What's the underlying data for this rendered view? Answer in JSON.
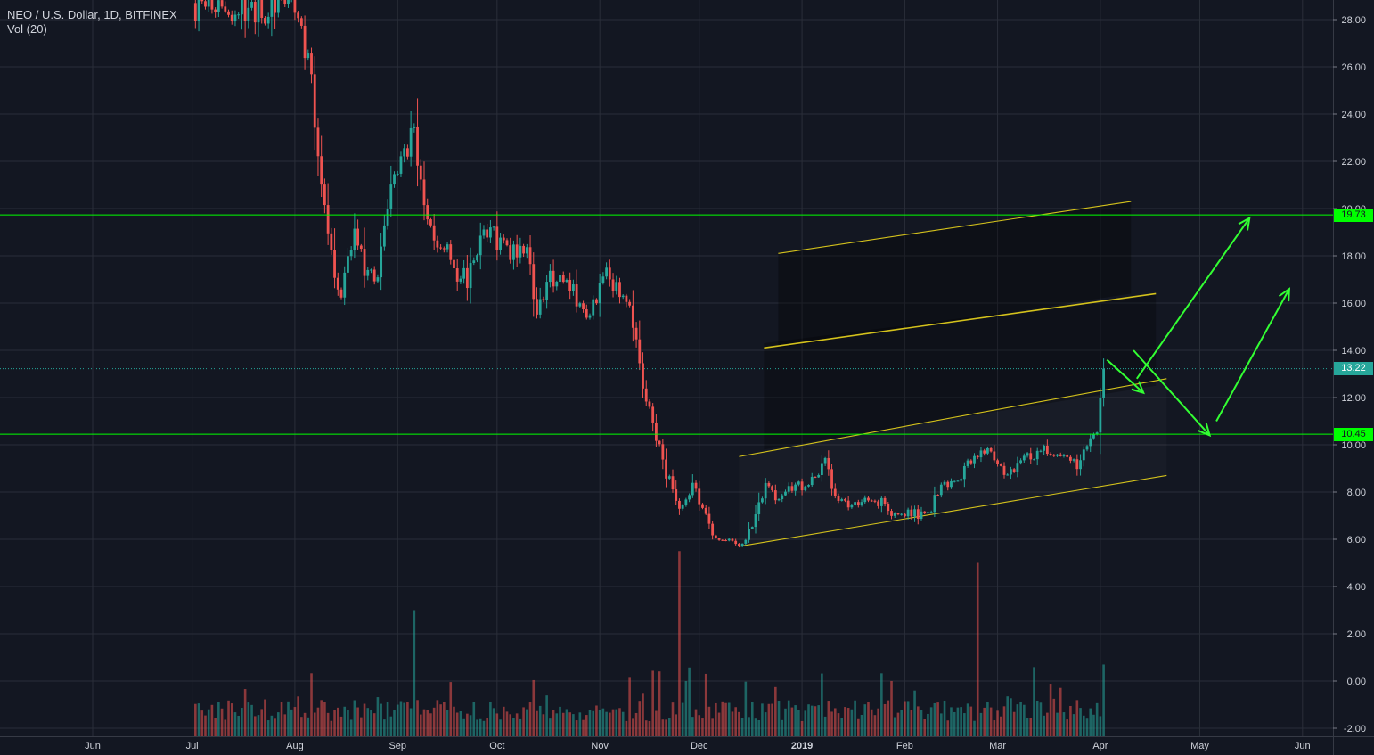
{
  "legend": {
    "title": "NEO / U.S. Dollar, 1D, BITFINEX",
    "indicator": "Vol (20)"
  },
  "colors": {
    "background": "#131722",
    "grid": "#2a2e39",
    "up": "#26a69a",
    "down": "#ef5350",
    "level_line": "#00ff00",
    "arrow": "#33ff33",
    "channel": "#d4c21c",
    "axis_text": "#d1d4dc",
    "last_price": "#26a69a"
  },
  "chart_data": {
    "type": "candlestick",
    "symbol": "NEO / U.S. Dollar",
    "interval": "1D",
    "exchange": "BITFINEX",
    "indicator": "Vol (20)",
    "y_axis": {
      "ticks": [
        "-2.00",
        "0.00",
        "2.00",
        "4.00",
        "6.00",
        "8.00",
        "10.00",
        "12.00",
        "14.00",
        "16.00",
        "18.00",
        "20.00",
        "22.00",
        "24.00",
        "26.00",
        "28.00"
      ],
      "range": [
        -2.2,
        28.8
      ]
    },
    "x_axis": {
      "ticks": [
        {
          "label": "Jun",
          "date": "2018-06-01",
          "bold": false
        },
        {
          "label": "Jul",
          "date": "2018-07-01",
          "bold": false
        },
        {
          "label": "Aug",
          "date": "2018-08-01",
          "bold": false
        },
        {
          "label": "Sep",
          "date": "2018-09-01",
          "bold": false
        },
        {
          "label": "Oct",
          "date": "2018-10-01",
          "bold": false
        },
        {
          "label": "Nov",
          "date": "2018-11-01",
          "bold": false
        },
        {
          "label": "Dec",
          "date": "2018-12-01",
          "bold": false
        },
        {
          "label": "2019",
          "date": "2019-01-01",
          "bold": true
        },
        {
          "label": "Feb",
          "date": "2019-02-01",
          "bold": false
        },
        {
          "label": "Mar",
          "date": "2019-03-01",
          "bold": false
        },
        {
          "label": "Apr",
          "date": "2019-04-01",
          "bold": false
        },
        {
          "label": "May",
          "date": "2019-05-01",
          "bold": false
        },
        {
          "label": "Jun",
          "date": "2019-06-01",
          "bold": false
        }
      ]
    },
    "price_path": [
      [
        "2018-07-01",
        28.9
      ],
      [
        "2018-07-04",
        28.3
      ],
      [
        "2018-08-01",
        28.6
      ],
      [
        "2018-08-04",
        27.0
      ],
      [
        "2018-08-07",
        24.0
      ],
      [
        "2018-08-10",
        20.5
      ],
      [
        "2018-08-13",
        17.0
      ],
      [
        "2018-08-15",
        16.0
      ],
      [
        "2018-08-19",
        19.5
      ],
      [
        "2018-08-22",
        17.0
      ],
      [
        "2018-08-26",
        17.5
      ],
      [
        "2018-08-30",
        20.5
      ],
      [
        "2018-09-03",
        22.5
      ],
      [
        "2018-09-06",
        23.5
      ],
      [
        "2018-09-09",
        20.0
      ],
      [
        "2018-09-13",
        18.5
      ],
      [
        "2018-09-17",
        17.8
      ],
      [
        "2018-09-22",
        16.8
      ],
      [
        "2018-09-27",
        19.2
      ],
      [
        "2018-10-02",
        18.6
      ],
      [
        "2018-10-06",
        18.0
      ],
      [
        "2018-10-10",
        18.6
      ],
      [
        "2018-10-13",
        15.6
      ],
      [
        "2018-10-17",
        17.2
      ],
      [
        "2018-10-22",
        16.9
      ],
      [
        "2018-10-27",
        15.6
      ],
      [
        "2018-10-31",
        16.3
      ],
      [
        "2018-11-03",
        17.0
      ],
      [
        "2018-11-08",
        16.1
      ],
      [
        "2018-11-11",
        15.2
      ],
      [
        "2018-11-14",
        12.4
      ],
      [
        "2018-11-18",
        10.3
      ],
      [
        "2018-11-21",
        8.8
      ],
      [
        "2018-11-25",
        7.3
      ],
      [
        "2018-11-29",
        8.3
      ],
      [
        "2018-12-03",
        6.9
      ],
      [
        "2018-12-06",
        5.9
      ],
      [
        "2018-12-10",
        5.9
      ],
      [
        "2018-12-13",
        5.6
      ],
      [
        "2018-12-17",
        6.6
      ],
      [
        "2018-12-21",
        8.4
      ],
      [
        "2018-12-25",
        7.6
      ],
      [
        "2018-12-30",
        8.3
      ],
      [
        "2019-01-03",
        8.2
      ],
      [
        "2019-01-08",
        9.3
      ],
      [
        "2019-01-11",
        7.8
      ],
      [
        "2019-01-15",
        7.5
      ],
      [
        "2019-01-20",
        7.6
      ],
      [
        "2019-01-25",
        7.6
      ],
      [
        "2019-01-29",
        7.0
      ],
      [
        "2019-02-02",
        7.1
      ],
      [
        "2019-02-08",
        7.0
      ],
      [
        "2019-02-12",
        8.4
      ],
      [
        "2019-02-17",
        8.5
      ],
      [
        "2019-02-22",
        9.6
      ],
      [
        "2019-02-25",
        9.9
      ],
      [
        "2019-03-01",
        9.0
      ],
      [
        "2019-03-05",
        8.8
      ],
      [
        "2019-03-10",
        9.4
      ],
      [
        "2019-03-15",
        9.7
      ],
      [
        "2019-03-20",
        9.5
      ],
      [
        "2019-03-25",
        9.1
      ],
      [
        "2019-03-28",
        10.2
      ],
      [
        "2019-03-31",
        10.5
      ],
      [
        "2019-04-01",
        12.0
      ],
      [
        "2019-04-02",
        13.22
      ]
    ],
    "volume_spikes": [
      {
        "date": "2018-11-25",
        "value": 5.5,
        "up": false
      },
      {
        "date": "2019-02-23",
        "value": 5.0,
        "up": false
      },
      {
        "date": "2018-09-06",
        "value": 3.0,
        "up": false
      },
      {
        "date": "2019-04-02",
        "value": 0.7,
        "up": true
      }
    ],
    "horizontal_levels": [
      19.73,
      10.45
    ],
    "last_price": 13.22,
    "price_labels": [
      {
        "value": 19.73,
        "text": "19.73",
        "kind": "level"
      },
      {
        "value": 13.22,
        "text": "13.22",
        "kind": "last"
      },
      {
        "value": 10.45,
        "text": "10.45",
        "kind": "level"
      }
    ],
    "channel": {
      "start_date": "2018-12-13",
      "end_date": "2019-04-21",
      "lines": [
        {
          "start": 5.7,
          "end": 8.7,
          "shaded": true
        },
        {
          "start": 9.5,
          "end": 12.8,
          "shaded": true
        },
        {
          "start": 14.1,
          "end": 16.4,
          "shaded": true
        },
        {
          "start": 18.1,
          "end": 20.3,
          "shaded": true
        }
      ]
    },
    "arrows": [
      {
        "from": [
          "2019-04-03",
          13.6
        ],
        "to": [
          "2019-04-14",
          12.2
        ]
      },
      {
        "from": [
          "2019-04-12",
          12.8
        ],
        "to": [
          "2019-05-16",
          19.6
        ]
      },
      {
        "from": [
          "2019-04-11",
          14.0
        ],
        "to": [
          "2019-05-04",
          10.4
        ]
      },
      {
        "from": [
          "2019-05-06",
          11.0
        ],
        "to": [
          "2019-05-28",
          16.6
        ]
      }
    ]
  }
}
